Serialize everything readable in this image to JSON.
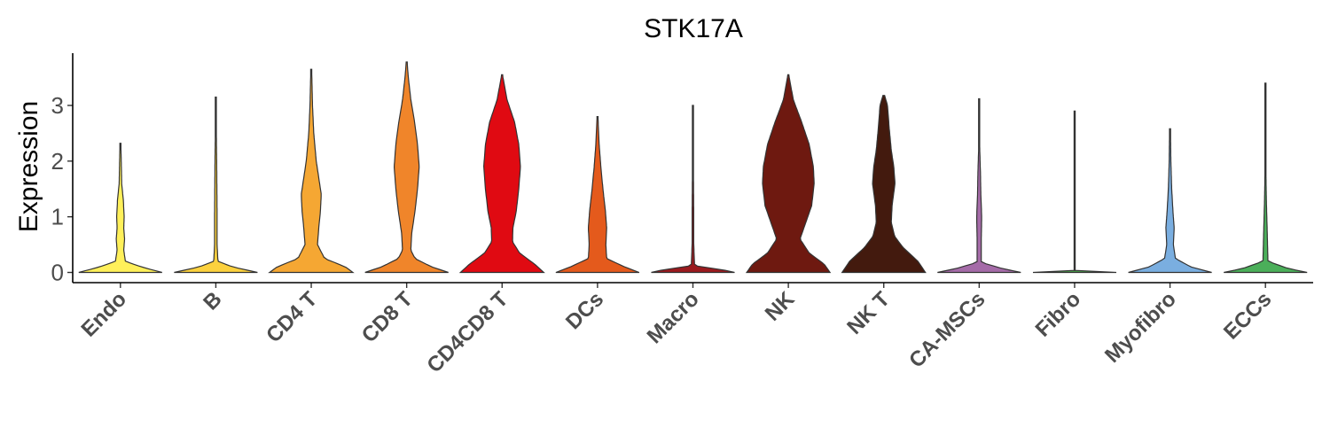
{
  "chart_data": {
    "type": "violin",
    "title": "STK17A",
    "xlabel": "",
    "ylabel": "Expression",
    "ylim": [
      -0.15,
      3.95
    ],
    "yticks": [
      "0",
      "1",
      "2",
      "3"
    ],
    "grid": false,
    "legend": "none",
    "categories": [
      "Endo",
      "B",
      "CD4 T",
      "CD8 T",
      "CD4CD8 T",
      "DCs",
      "Macro",
      "NK",
      "NK T",
      "CA-MSCs",
      "Fibro",
      "Myofibro",
      "ECCs"
    ],
    "colors": [
      "#FFF05A",
      "#FCD13E",
      "#F5A733",
      "#F0852A",
      "#E00A12",
      "#E45A1C",
      "#9B1A1E",
      "#6E1910",
      "#431A0E",
      "#A56BA8",
      "#4A9F4A",
      "#7AAEE0",
      "#4BAF5A"
    ],
    "series": [
      {
        "name": "Endo",
        "min": 0,
        "max": 2.32,
        "profile": [
          [
            0,
            1
          ],
          [
            0.1,
            0.5
          ],
          [
            0.2,
            0.12
          ],
          [
            0.4,
            0.08
          ],
          [
            0.6,
            0.1
          ],
          [
            0.8,
            0.08
          ],
          [
            1.0,
            0.09
          ],
          [
            1.3,
            0.07
          ],
          [
            1.6,
            0.03
          ],
          [
            2.0,
            0.02
          ],
          [
            2.32,
            0.01
          ]
        ]
      },
      {
        "name": "B",
        "min": 0,
        "max": 3.15,
        "profile": [
          [
            0,
            1
          ],
          [
            0.1,
            0.4
          ],
          [
            0.2,
            0.05
          ],
          [
            0.5,
            0.03
          ],
          [
            1.0,
            0.03
          ],
          [
            1.5,
            0.025
          ],
          [
            2.0,
            0.02
          ],
          [
            2.5,
            0.012
          ],
          [
            3.15,
            0.005
          ]
        ]
      },
      {
        "name": "CD4 T",
        "min": 0,
        "max": 3.65,
        "profile": [
          [
            0,
            1
          ],
          [
            0.1,
            0.82
          ],
          [
            0.25,
            0.32
          ],
          [
            0.5,
            0.15
          ],
          [
            0.8,
            0.18
          ],
          [
            1.1,
            0.22
          ],
          [
            1.4,
            0.24
          ],
          [
            1.7,
            0.18
          ],
          [
            2.0,
            0.12
          ],
          [
            2.5,
            0.06
          ],
          [
            3.0,
            0.03
          ],
          [
            3.65,
            0.01
          ]
        ]
      },
      {
        "name": "CD8 T",
        "min": 0,
        "max": 3.78,
        "profile": [
          [
            0,
            1
          ],
          [
            0.1,
            0.6
          ],
          [
            0.25,
            0.2
          ],
          [
            0.4,
            0.1
          ],
          [
            0.7,
            0.12
          ],
          [
            1.1,
            0.2
          ],
          [
            1.5,
            0.26
          ],
          [
            1.9,
            0.3
          ],
          [
            2.3,
            0.26
          ],
          [
            2.7,
            0.19
          ],
          [
            3.1,
            0.1
          ],
          [
            3.5,
            0.04
          ],
          [
            3.78,
            0.01
          ]
        ]
      },
      {
        "name": "CD4CD8 T",
        "min": 0,
        "max": 3.55,
        "profile": [
          [
            0,
            1
          ],
          [
            0.15,
            0.78
          ],
          [
            0.35,
            0.42
          ],
          [
            0.55,
            0.25
          ],
          [
            0.8,
            0.26
          ],
          [
            1.1,
            0.34
          ],
          [
            1.5,
            0.4
          ],
          [
            1.9,
            0.44
          ],
          [
            2.3,
            0.4
          ],
          [
            2.7,
            0.3
          ],
          [
            3.1,
            0.12
          ],
          [
            3.55,
            0.01
          ]
        ]
      },
      {
        "name": "DCs",
        "min": 0,
        "max": 2.8,
        "profile": [
          [
            0,
            1
          ],
          [
            0.1,
            0.65
          ],
          [
            0.25,
            0.22
          ],
          [
            0.5,
            0.2
          ],
          [
            0.8,
            0.22
          ],
          [
            1.1,
            0.19
          ],
          [
            1.5,
            0.13
          ],
          [
            1.9,
            0.08
          ],
          [
            2.3,
            0.04
          ],
          [
            2.8,
            0.01
          ]
        ]
      },
      {
        "name": "Macro",
        "min": 0,
        "max": 3.0,
        "profile": [
          [
            0,
            1
          ],
          [
            0.05,
            0.7
          ],
          [
            0.12,
            0.04
          ],
          [
            0.5,
            0.02
          ],
          [
            1.0,
            0.02
          ],
          [
            1.5,
            0.015
          ],
          [
            2.0,
            0.01
          ],
          [
            3.0,
            0.005
          ]
        ]
      },
      {
        "name": "NK",
        "min": 0,
        "max": 3.55,
        "profile": [
          [
            0,
            1
          ],
          [
            0.15,
            0.86
          ],
          [
            0.35,
            0.5
          ],
          [
            0.6,
            0.28
          ],
          [
            0.9,
            0.42
          ],
          [
            1.2,
            0.56
          ],
          [
            1.6,
            0.62
          ],
          [
            1.9,
            0.6
          ],
          [
            2.3,
            0.5
          ],
          [
            2.7,
            0.32
          ],
          [
            3.1,
            0.12
          ],
          [
            3.55,
            0.01
          ]
        ]
      },
      {
        "name": "NK T",
        "min": 0,
        "max": 3.18,
        "profile": [
          [
            0,
            1
          ],
          [
            0.2,
            0.82
          ],
          [
            0.45,
            0.46
          ],
          [
            0.65,
            0.26
          ],
          [
            0.9,
            0.18
          ],
          [
            1.2,
            0.2
          ],
          [
            1.6,
            0.27
          ],
          [
            1.9,
            0.24
          ],
          [
            2.2,
            0.18
          ],
          [
            2.6,
            0.13
          ],
          [
            3.0,
            0.09
          ],
          [
            3.18,
            0.02
          ]
        ]
      },
      {
        "name": "CA-MSCs",
        "min": 0,
        "max": 3.12,
        "profile": [
          [
            0,
            1
          ],
          [
            0.07,
            0.55
          ],
          [
            0.18,
            0.05
          ],
          [
            0.6,
            0.05
          ],
          [
            1.0,
            0.06
          ],
          [
            1.4,
            0.04
          ],
          [
            1.8,
            0.03
          ],
          [
            2.3,
            0.01
          ],
          [
            3.12,
            0.005
          ]
        ]
      },
      {
        "name": "Fibro",
        "min": 0,
        "max": 2.9,
        "profile": [
          [
            0,
            1
          ],
          [
            0.01,
            0.6
          ],
          [
            0.02,
            0.006
          ],
          [
            1.0,
            0.006
          ],
          [
            2.0,
            0.005
          ],
          [
            2.9,
            0.004
          ]
        ]
      },
      {
        "name": "Myofibro",
        "min": 0,
        "max": 2.58,
        "profile": [
          [
            0,
            1
          ],
          [
            0.1,
            0.5
          ],
          [
            0.25,
            0.13
          ],
          [
            0.5,
            0.08
          ],
          [
            0.8,
            0.1
          ],
          [
            1.1,
            0.07
          ],
          [
            1.5,
            0.04
          ],
          [
            2.0,
            0.02
          ],
          [
            2.58,
            0.01
          ]
        ]
      },
      {
        "name": "ECCs",
        "min": 0,
        "max": 3.4,
        "profile": [
          [
            0,
            1
          ],
          [
            0.07,
            0.55
          ],
          [
            0.2,
            0.06
          ],
          [
            0.5,
            0.05
          ],
          [
            0.8,
            0.04
          ],
          [
            1.2,
            0.025
          ],
          [
            1.6,
            0.015
          ],
          [
            2.2,
            0.008
          ],
          [
            3.4,
            0.005
          ]
        ]
      }
    ]
  }
}
